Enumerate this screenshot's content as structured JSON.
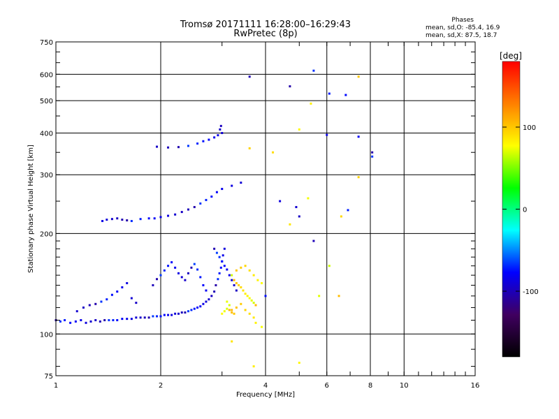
{
  "header": {
    "title": "Tromsø 20171111 16:28:00–16:29:43",
    "subtitle": "RwPretec (8p)"
  },
  "phases_box": {
    "heading": "Phases",
    "line1": "mean, sd,O: -85.4, 16.9",
    "line2": "mean, sd,X:  87.5, 18.7"
  },
  "colorbar": {
    "label": "[deg]",
    "ticks": [
      "100",
      "0",
      "-100"
    ],
    "tick_values": [
      100,
      0,
      -100
    ],
    "range": [
      -180,
      180
    ],
    "colors": [
      "#ff0000",
      "#ff8000",
      "#ffff00",
      "#00ff00",
      "#00ffff",
      "#0000ff",
      "#400060",
      "#000000"
    ]
  },
  "chart_data": {
    "type": "scatter",
    "title": "Tromsø 20171111 16:28:00–16:29:43",
    "subtitle": "RwPretec (8p)",
    "xlabel": "Frequency [MHz]",
    "ylabel": "Stationary phase Virtual Height [km]",
    "x_scale": "log",
    "y_scale": "log",
    "xlim": [
      1,
      16
    ],
    "ylim": [
      75,
      750
    ],
    "x_ticks": [
      1,
      2,
      4,
      6,
      8,
      10,
      16
    ],
    "x_tick_labels": [
      "1",
      "2",
      "4",
      "6",
      "8",
      "10",
      "16"
    ],
    "y_ticks": [
      75,
      100,
      200,
      300,
      400,
      500,
      600,
      750
    ],
    "y_tick_labels": [
      "75",
      "100",
      "200",
      "300",
      "400",
      "500",
      "600",
      "750"
    ],
    "grid": true,
    "legend": "colorbar right: phase [deg]",
    "series": [
      {
        "name": "O",
        "color_phase": -85,
        "points": [
          [
            1.0,
            110
          ],
          [
            1.03,
            109
          ],
          [
            1.06,
            110
          ],
          [
            1.1,
            108
          ],
          [
            1.14,
            109
          ],
          [
            1.18,
            110
          ],
          [
            1.22,
            108
          ],
          [
            1.26,
            109
          ],
          [
            1.3,
            110
          ],
          [
            1.34,
            109
          ],
          [
            1.38,
            110
          ],
          [
            1.42,
            110
          ],
          [
            1.46,
            110
          ],
          [
            1.5,
            110
          ],
          [
            1.55,
            111
          ],
          [
            1.6,
            111
          ],
          [
            1.65,
            111
          ],
          [
            1.7,
            112
          ],
          [
            1.75,
            112
          ],
          [
            1.8,
            112
          ],
          [
            1.85,
            112
          ],
          [
            1.9,
            113
          ],
          [
            1.95,
            113
          ],
          [
            2.0,
            113
          ],
          [
            2.05,
            114
          ],
          [
            2.1,
            114
          ],
          [
            2.15,
            114
          ],
          [
            2.2,
            115
          ],
          [
            2.25,
            115
          ],
          [
            2.3,
            116
          ],
          [
            2.35,
            116
          ],
          [
            2.4,
            117
          ],
          [
            2.45,
            118
          ],
          [
            2.5,
            119
          ],
          [
            2.55,
            120
          ],
          [
            2.6,
            121
          ],
          [
            2.65,
            123
          ],
          [
            2.7,
            125
          ],
          [
            2.75,
            127
          ],
          [
            2.8,
            130
          ],
          [
            2.85,
            134
          ],
          [
            2.88,
            140
          ],
          [
            2.92,
            146
          ],
          [
            2.95,
            152
          ],
          [
            2.98,
            158
          ],
          [
            3.0,
            165
          ],
          [
            3.02,
            172
          ],
          [
            3.05,
            180
          ],
          [
            1.15,
            117
          ],
          [
            1.2,
            120
          ],
          [
            1.25,
            122
          ],
          [
            1.3,
            123
          ],
          [
            1.35,
            125
          ],
          [
            1.4,
            127
          ],
          [
            1.45,
            131
          ],
          [
            1.5,
            134
          ],
          [
            1.55,
            138
          ],
          [
            1.6,
            142
          ],
          [
            1.65,
            128
          ],
          [
            1.7,
            124
          ],
          [
            1.9,
            140
          ],
          [
            1.95,
            146
          ],
          [
            2.0,
            150
          ],
          [
            2.05,
            155
          ],
          [
            2.1,
            160
          ],
          [
            2.15,
            164
          ],
          [
            2.2,
            158
          ],
          [
            2.25,
            152
          ],
          [
            2.3,
            148
          ],
          [
            2.35,
            145
          ],
          [
            2.4,
            152
          ],
          [
            2.45,
            158
          ],
          [
            2.5,
            162
          ],
          [
            2.55,
            156
          ],
          [
            2.6,
            148
          ],
          [
            2.65,
            140
          ],
          [
            2.7,
            135
          ],
          [
            1.36,
            218
          ],
          [
            1.4,
            220
          ],
          [
            1.45,
            221
          ],
          [
            1.5,
            222
          ],
          [
            1.55,
            220
          ],
          [
            1.6,
            219
          ],
          [
            1.65,
            218
          ],
          [
            1.75,
            221
          ],
          [
            1.85,
            222
          ],
          [
            1.92,
            222
          ],
          [
            2.0,
            224
          ],
          [
            2.1,
            226
          ],
          [
            2.2,
            228
          ],
          [
            2.3,
            232
          ],
          [
            2.4,
            236
          ],
          [
            2.5,
            240
          ],
          [
            2.6,
            246
          ],
          [
            2.7,
            252
          ],
          [
            2.8,
            258
          ],
          [
            2.9,
            266
          ],
          [
            3.0,
            272
          ],
          [
            3.2,
            278
          ],
          [
            3.4,
            284
          ],
          [
            1.95,
            364
          ],
          [
            2.1,
            362
          ],
          [
            2.25,
            363
          ],
          [
            2.4,
            366
          ],
          [
            2.55,
            372
          ],
          [
            2.65,
            378
          ],
          [
            2.75,
            382
          ],
          [
            2.85,
            388
          ],
          [
            2.92,
            394
          ],
          [
            3.0,
            400
          ],
          [
            2.96,
            410
          ],
          [
            2.98,
            420
          ],
          [
            2.85,
            180
          ],
          [
            2.9,
            175
          ],
          [
            2.95,
            170
          ],
          [
            3.0,
            165
          ],
          [
            3.05,
            160
          ],
          [
            3.1,
            156
          ],
          [
            3.15,
            150
          ],
          [
            3.2,
            145
          ],
          [
            3.25,
            140
          ],
          [
            3.3,
            135
          ],
          [
            3.6,
            590
          ],
          [
            4.7,
            552
          ],
          [
            5.5,
            615
          ],
          [
            6.1,
            525
          ],
          [
            6.8,
            520
          ],
          [
            7.4,
            390
          ],
          [
            6.0,
            395
          ],
          [
            4.4,
            250
          ],
          [
            4.9,
            240
          ],
          [
            5.0,
            225
          ],
          [
            5.5,
            190
          ],
          [
            8.1,
            350
          ],
          [
            8.1,
            340
          ],
          [
            6.9,
            235
          ],
          [
            4.0,
            130
          ]
        ]
      },
      {
        "name": "X",
        "color_phase": 87,
        "points": [
          [
            3.2,
            150
          ],
          [
            3.25,
            145
          ],
          [
            3.3,
            142
          ],
          [
            3.35,
            140
          ],
          [
            3.4,
            138
          ],
          [
            3.45,
            135
          ],
          [
            3.5,
            132
          ],
          [
            3.55,
            130
          ],
          [
            3.6,
            128
          ],
          [
            3.65,
            126
          ],
          [
            3.7,
            124
          ],
          [
            3.75,
            122
          ],
          [
            3.3,
            155
          ],
          [
            3.4,
            158
          ],
          [
            3.5,
            160
          ],
          [
            3.6,
            155
          ],
          [
            3.7,
            150
          ],
          [
            3.8,
            145
          ],
          [
            3.9,
            142
          ],
          [
            3.1,
            125
          ],
          [
            3.15,
            122
          ],
          [
            3.2,
            118
          ],
          [
            3.3,
            120
          ],
          [
            3.4,
            123
          ],
          [
            3.5,
            118
          ],
          [
            3.6,
            115
          ],
          [
            3.7,
            112
          ],
          [
            3.75,
            108
          ],
          [
            3.0,
            115
          ],
          [
            3.05,
            117
          ],
          [
            3.1,
            119
          ],
          [
            3.15,
            118
          ],
          [
            3.2,
            116
          ],
          [
            3.25,
            115
          ],
          [
            3.6,
            360
          ],
          [
            4.2,
            350
          ],
          [
            4.7,
            213
          ],
          [
            5.4,
            490
          ],
          [
            5.0,
            410
          ],
          [
            5.3,
            255
          ],
          [
            5.7,
            130
          ],
          [
            6.1,
            160
          ],
          [
            6.5,
            130
          ],
          [
            7.4,
            590
          ],
          [
            7.4,
            295
          ],
          [
            6.6,
            225
          ],
          [
            3.2,
            95
          ],
          [
            3.7,
            80
          ],
          [
            5.0,
            82
          ],
          [
            3.9,
            105
          ]
        ]
      }
    ]
  }
}
